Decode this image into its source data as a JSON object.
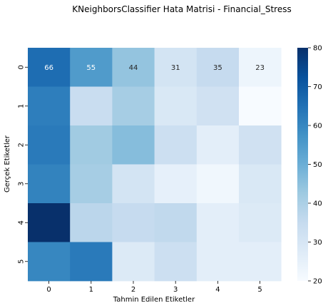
{
  "chart_data": {
    "type": "heatmap",
    "title": "KNeighborsClassifier Hata Matrisi - Financial_Stress",
    "xlabel": "Tahmin Edilen Etiketler",
    "ylabel": "Gerçek Etiketler",
    "x_categories": [
      "0",
      "1",
      "2",
      "3",
      "4",
      "5"
    ],
    "y_categories": [
      "0",
      "1",
      "2",
      "3",
      "4",
      "5"
    ],
    "values": [
      [
        66,
        55,
        44,
        31,
        35,
        23
      ],
      [
        62,
        34,
        41,
        29,
        32,
        20
      ],
      [
        63,
        42,
        46,
        33,
        26,
        32
      ],
      [
        61,
        41,
        31,
        25,
        22,
        29
      ],
      [
        80,
        37,
        35,
        36,
        26,
        28
      ],
      [
        60,
        63,
        28,
        33,
        26,
        26
      ]
    ],
    "annotated_row": 0,
    "colorbar": {
      "min": 20,
      "max": 80,
      "ticks": [
        "20",
        "30",
        "40",
        "50",
        "60",
        "70",
        "80"
      ]
    },
    "colormap": "Blues",
    "grid": false,
    "legend": "colorbar-right"
  }
}
